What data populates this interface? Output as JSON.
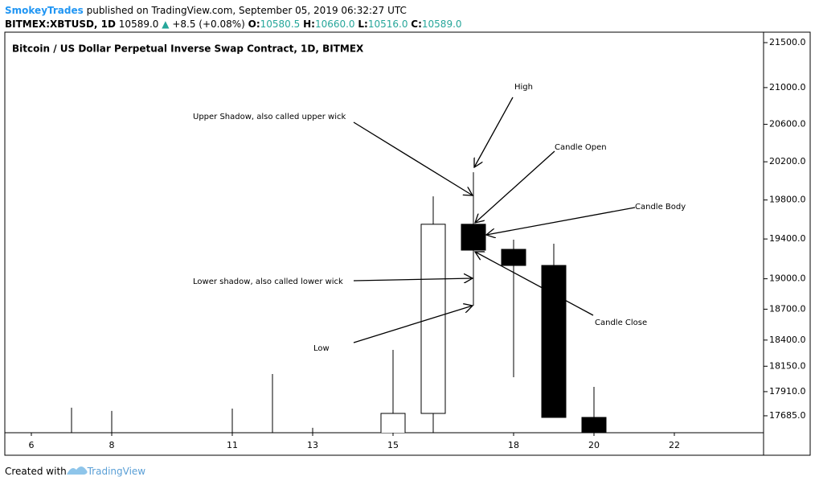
{
  "header": {
    "author": "SmokeyTrades",
    "published": "published on TradingView.com, September 05, 2019 06:32:27 UTC",
    "symbol": "BITMEX:XBTUSD, 1D",
    "last": "10589.0",
    "change": "+8.5 (+0.08%)",
    "ohlc": [
      {
        "label": "O:",
        "value": "10580.5"
      },
      {
        "label": "H:",
        "value": "10660.0"
      },
      {
        "label": "L:",
        "value": "10516.0"
      },
      {
        "label": "C:",
        "value": "10589.0"
      }
    ]
  },
  "chart_data": {
    "type": "candlestick",
    "title": "Bitcoin / US Dollar Perpetual Inverse Swap Contract, 1D, BITMEX",
    "x": [
      7,
      8,
      11,
      12,
      13,
      15,
      16,
      17,
      18,
      19,
      20
    ],
    "open": [
      null,
      null,
      null,
      null,
      null,
      null,
      17707,
      19550,
      19295,
      19133,
      17670
    ],
    "high": [
      17760,
      17730,
      17752,
      18076,
      17574,
      18306,
      19838,
      20090,
      19393,
      19352,
      17955
    ],
    "low": [
      null,
      null,
      null,
      null,
      null,
      null,
      null,
      18735,
      18046,
      17670,
      null
    ],
    "close": [
      null,
      null,
      null,
      null,
      null,
      17707,
      19550,
      19287,
      19133,
      17670,
      null
    ],
    "up_color": "#ffffff",
    "down_color": "#000000",
    "xlim": [
      5.34,
      24.22
    ],
    "xticks": [
      6,
      8,
      11,
      13,
      15,
      18,
      20,
      22
    ],
    "ylim": [
      17529,
      21618
    ],
    "log_scale": true,
    "yticks": [
      {
        "value": 17685,
        "label": "17685.0"
      },
      {
        "value": 17910,
        "label": "17910.0"
      },
      {
        "value": 18150,
        "label": "18150.0"
      },
      {
        "value": 18400,
        "label": "18400.0"
      },
      {
        "value": 18700,
        "label": "18700.0"
      },
      {
        "value": 19000,
        "label": "19000.0"
      },
      {
        "value": 19400,
        "label": "19400.0"
      },
      {
        "value": 19800,
        "label": "19800.0"
      },
      {
        "value": 20200,
        "label": "20200.0"
      },
      {
        "value": 20600,
        "label": "20600.0"
      },
      {
        "value": 21000,
        "label": "21000.0"
      },
      {
        "value": 21500,
        "label": "21500.0"
      }
    ],
    "annotations": [
      "High",
      "Upper Shadow, also called upper wick",
      "Candle Open",
      "Candle Body",
      "Lower shadow, also called lower wick",
      "Low",
      "Candle Close"
    ]
  },
  "footer": {
    "prefix": "Created with",
    "brand": "TradingView"
  }
}
